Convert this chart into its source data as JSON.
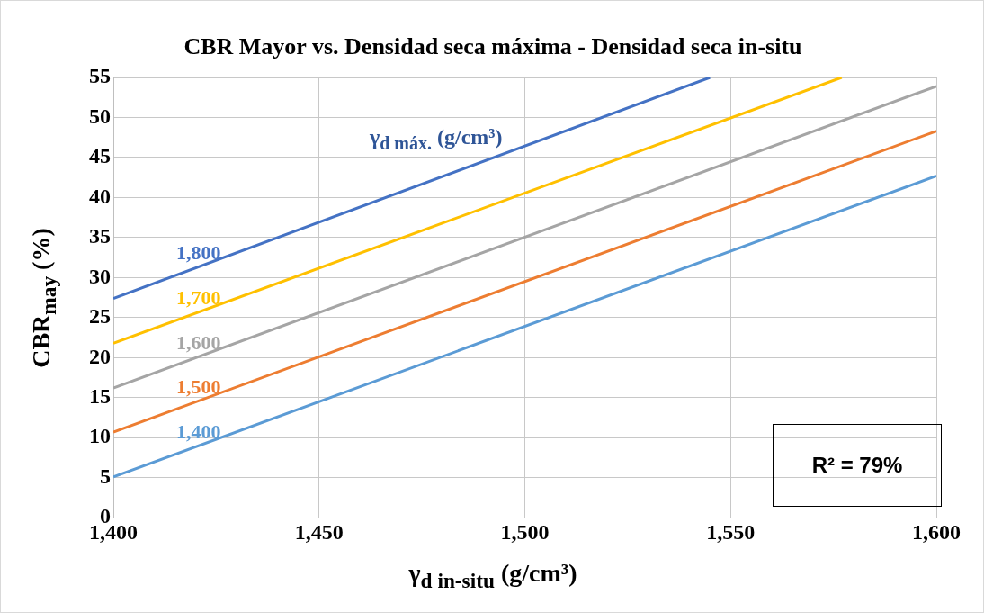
{
  "chart_data": {
    "type": "line",
    "title": "CBR Mayor vs. Densidad seca máxima - Densidad seca in-situ",
    "xlabel": "γ$_{d in-situ}$ (g/cm³)",
    "ylabel": "CBR$_{may}$ (%)",
    "series": [
      {
        "name": "1,800",
        "color": "#4472c4",
        "x": [
          1400,
          1545
        ],
        "values": [
          27.4,
          55
        ]
      },
      {
        "name": "1,700",
        "color": "#ffc000",
        "x": [
          1400,
          1577
        ],
        "values": [
          21.8,
          55
        ]
      },
      {
        "name": "1,600",
        "color": "#a5a5a5",
        "x": [
          1400,
          1600
        ],
        "values": [
          16.2,
          53.9
        ]
      },
      {
        "name": "1,500",
        "color": "#ed7d31",
        "x": [
          1400,
          1600
        ],
        "values": [
          10.7,
          48.3
        ]
      },
      {
        "name": "1,400",
        "color": "#5b9bd5",
        "x": [
          1400,
          1600
        ],
        "values": [
          5.1,
          42.7
        ]
      }
    ],
    "xlim": [
      1400,
      1600
    ],
    "xticks": [
      {
        "value": 1400,
        "label": "1,400"
      },
      {
        "value": 1450,
        "label": "1,450"
      },
      {
        "value": 1500,
        "label": "1,500"
      },
      {
        "value": 1550,
        "label": "1,550"
      },
      {
        "value": 1600,
        "label": "1,600"
      }
    ],
    "ylim": [
      0,
      55
    ],
    "yticks": [
      0,
      5,
      10,
      15,
      20,
      25,
      30,
      35,
      40,
      45,
      50,
      55
    ],
    "grid": true,
    "legend": false,
    "marker": "none",
    "line_style": "solid",
    "annotations": [
      "γ$_{d máx.}$ (g/cm³)",
      "R² = 79%"
    ]
  }
}
